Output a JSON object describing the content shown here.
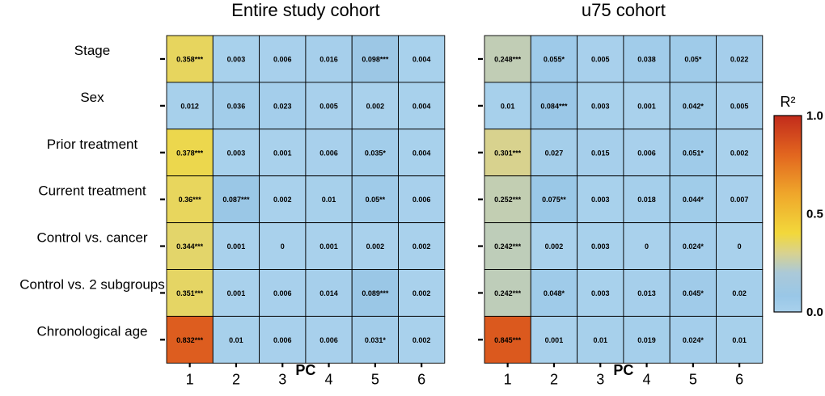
{
  "chart_data": {
    "type": "heatmap",
    "rows": [
      "Stage",
      "Sex",
      "Prior treatment",
      "Current treatment",
      "Control vs. cancer",
      "Control vs. 2 subgroups",
      "Chronological age"
    ],
    "columns": [
      "1",
      "2",
      "3",
      "4",
      "5",
      "6"
    ],
    "xlabel": "PC",
    "panels": [
      {
        "title": "Entire study cohort",
        "values": [
          [
            0.358,
            0.003,
            0.006,
            0.016,
            0.098,
            0.004
          ],
          [
            0.012,
            0.036,
            0.023,
            0.005,
            0.002,
            0.004
          ],
          [
            0.378,
            0.003,
            0.001,
            0.006,
            0.035,
            0.004
          ],
          [
            0.36,
            0.087,
            0.002,
            0.01,
            0.05,
            0.006
          ],
          [
            0.344,
            0.001,
            0,
            0.001,
            0.002,
            0.002
          ],
          [
            0.351,
            0.001,
            0.006,
            0.014,
            0.089,
            0.002
          ],
          [
            0.832,
            0.01,
            0.006,
            0.006,
            0.031,
            0.002
          ]
        ],
        "labels": [
          [
            "0.358***",
            "0.003",
            "0.006",
            "0.016",
            "0.098***",
            "0.004"
          ],
          [
            "0.012",
            "0.036",
            "0.023",
            "0.005",
            "0.002",
            "0.004"
          ],
          [
            "0.378***",
            "0.003",
            "0.001",
            "0.006",
            "0.035*",
            "0.004"
          ],
          [
            "0.36***",
            "0.087***",
            "0.002",
            "0.01",
            "0.05**",
            "0.006"
          ],
          [
            "0.344***",
            "0.001",
            "0",
            "0.001",
            "0.002",
            "0.002"
          ],
          [
            "0.351***",
            "0.001",
            "0.006",
            "0.014",
            "0.089***",
            "0.002"
          ],
          [
            "0.832***",
            "0.01",
            "0.006",
            "0.006",
            "0.031*",
            "0.002"
          ]
        ]
      },
      {
        "title": "u75 cohort",
        "values": [
          [
            0.248,
            0.055,
            0.005,
            0.038,
            0.05,
            0.022
          ],
          [
            0.01,
            0.084,
            0.003,
            0.001,
            0.042,
            0.005
          ],
          [
            0.301,
            0.027,
            0.015,
            0.006,
            0.051,
            0.002
          ],
          [
            0.252,
            0.075,
            0.003,
            0.018,
            0.044,
            0.007
          ],
          [
            0.242,
            0.002,
            0.003,
            0,
            0.024,
            0
          ],
          [
            0.242,
            0.048,
            0.003,
            0.013,
            0.045,
            0.02
          ],
          [
            0.845,
            0.001,
            0.01,
            0.019,
            0.024,
            0.01
          ]
        ],
        "labels": [
          [
            "0.248***",
            "0.055*",
            "0.005",
            "0.038",
            "0.05*",
            "0.022"
          ],
          [
            "0.01",
            "0.084***",
            "0.003",
            "0.001",
            "0.042*",
            "0.005"
          ],
          [
            "0.301***",
            "0.027",
            "0.015",
            "0.006",
            "0.051*",
            "0.002"
          ],
          [
            "0.252***",
            "0.075**",
            "0.003",
            "0.018",
            "0.044*",
            "0.007"
          ],
          [
            "0.242***",
            "0.002",
            "0.003",
            "0",
            "0.024*",
            "0"
          ],
          [
            "0.242***",
            "0.048*",
            "0.003",
            "0.013",
            "0.045*",
            "0.02"
          ],
          [
            "0.845***",
            "0.001",
            "0.01",
            "0.019",
            "0.024*",
            "0.01"
          ]
        ]
      }
    ],
    "legend": {
      "title": "R²",
      "ticks": [
        "0.0",
        "0.5",
        "1.0"
      ],
      "range": [
        0,
        1
      ],
      "placement": "right"
    },
    "color_scale": [
      {
        "v": 0.0,
        "c": "#a9d1ec"
      },
      {
        "v": 0.08,
        "c": "#99c7e7"
      },
      {
        "v": 0.2,
        "c": "#abc9d8"
      },
      {
        "v": 0.3,
        "c": "#d8d28f"
      },
      {
        "v": 0.4,
        "c": "#f2d83b"
      },
      {
        "v": 0.6,
        "c": "#efa72b"
      },
      {
        "v": 0.8,
        "c": "#e2661f"
      },
      {
        "v": 1.0,
        "c": "#c22b1c"
      }
    ]
  }
}
